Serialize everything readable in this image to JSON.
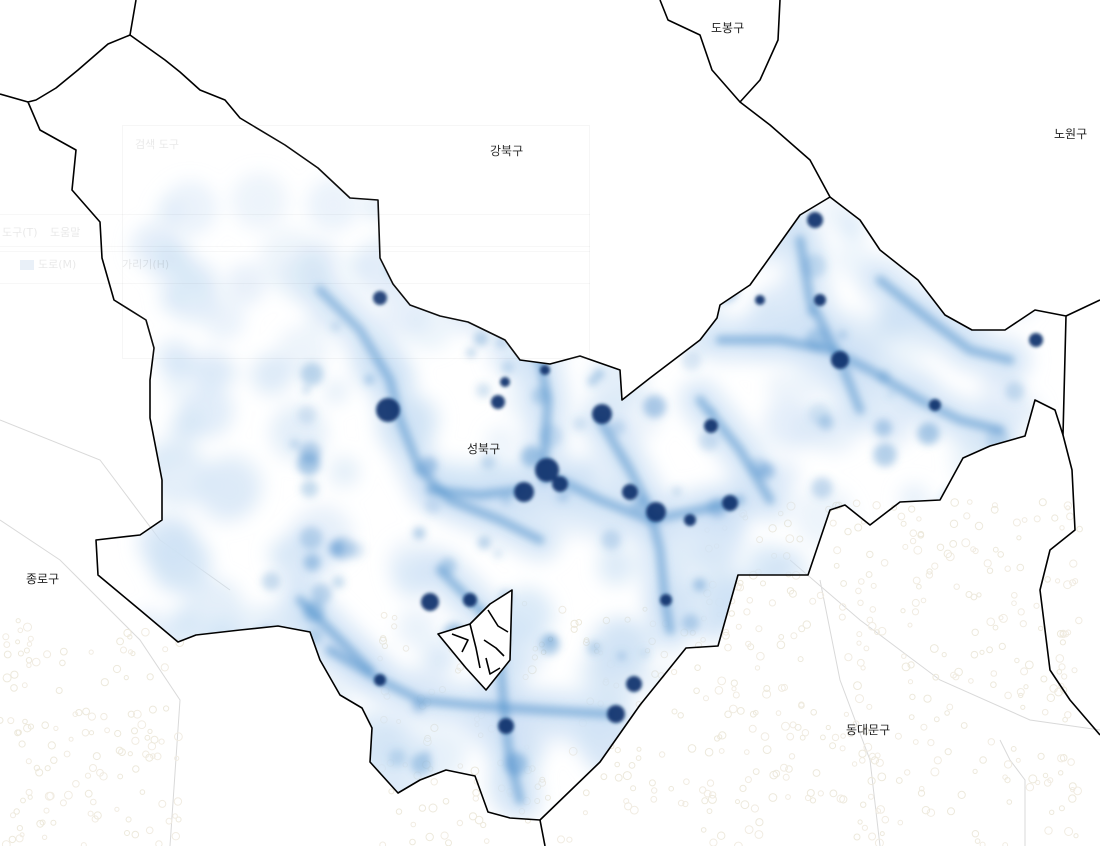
{
  "map": {
    "colors": {
      "heat_light": "#cfe2f5",
      "heat_mid": "#4f8fcb",
      "heat_dark": "#08306b",
      "boundary": "#000000",
      "background": "#ffffff"
    },
    "labels": {
      "dobong": "도봉구",
      "gangbuk": "강북구",
      "nowon": "노원구",
      "seongbuk": "성북구",
      "jongno": "종로구",
      "dongdaemun": "동대문구"
    }
  },
  "ghost_ui": {
    "search_placeholder": "검색 도구",
    "menu_tool": "도구(T)",
    "menu_help": "도움말",
    "road_label": "도로(M)",
    "hide_label": "가리기(H)"
  }
}
